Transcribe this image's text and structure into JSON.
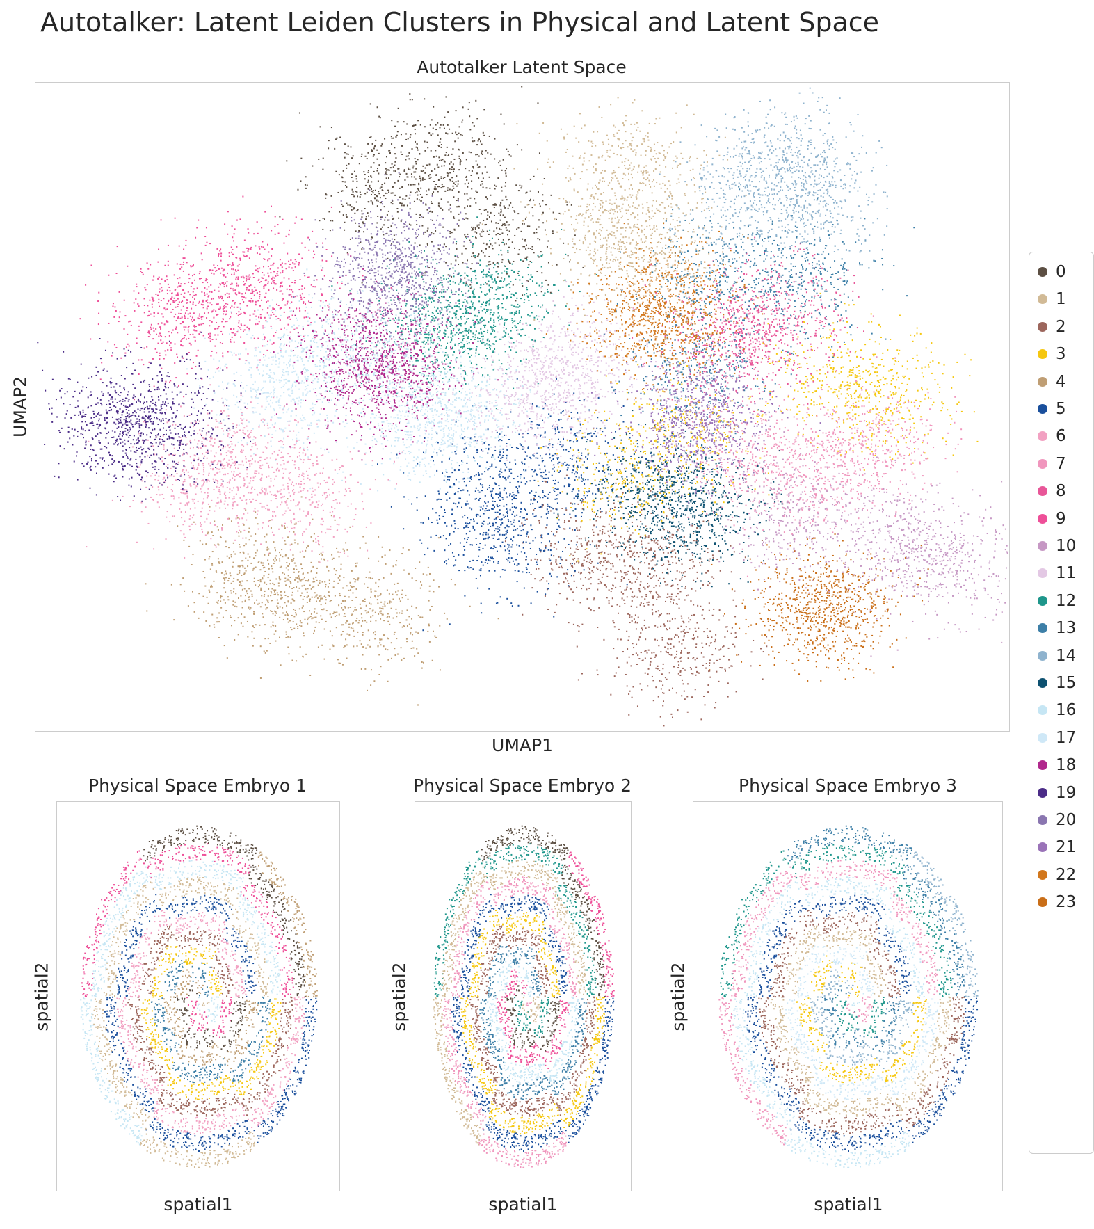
{
  "figure": {
    "title": "Autotalker: Latent Leiden Clusters in Physical and Latent Space"
  },
  "chart_data": [
    {
      "type": "scatter",
      "title": "Autotalker Latent Space",
      "xlabel": "UMAP1",
      "ylabel": "UMAP2",
      "grid": false,
      "ticks": false,
      "legend_position": "right",
      "clusters": [
        {
          "name": "0",
          "color": "#5c4f43",
          "centers": [
            [
              0.42,
              0.12
            ],
            [
              0.35,
              0.16
            ],
            [
              0.47,
              0.23
            ]
          ]
        },
        {
          "name": "1",
          "color": "#d1ba96",
          "centers": [
            [
              0.59,
              0.21
            ],
            [
              0.61,
              0.13
            ],
            [
              0.63,
              0.27
            ]
          ]
        },
        {
          "name": "2",
          "color": "#9c665c",
          "centers": [
            [
              0.63,
              0.75
            ],
            [
              0.66,
              0.88
            ],
            [
              0.57,
              0.72
            ]
          ]
        },
        {
          "name": "3",
          "color": "#f5c710",
          "centers": [
            [
              0.67,
              0.54
            ],
            [
              0.82,
              0.45
            ],
            [
              0.88,
              0.49
            ],
            [
              0.6,
              0.6
            ]
          ]
        },
        {
          "name": "4",
          "color": "#bf9e74",
          "centers": [
            [
              0.27,
              0.79
            ],
            [
              0.35,
              0.81
            ],
            [
              0.22,
              0.76
            ]
          ]
        },
        {
          "name": "5",
          "color": "#1a4f9c",
          "centers": [
            [
              0.46,
              0.63
            ],
            [
              0.48,
              0.7
            ],
            [
              0.54,
              0.58
            ]
          ]
        },
        {
          "name": "6",
          "color": "#f2a1c2",
          "centers": [
            [
              0.21,
              0.58
            ],
            [
              0.27,
              0.63
            ],
            [
              0.17,
              0.62
            ]
          ]
        },
        {
          "name": "7",
          "color": "#f096bd",
          "centers": [
            [
              0.8,
              0.6
            ],
            [
              0.86,
              0.56
            ],
            [
              0.74,
              0.57
            ]
          ]
        },
        {
          "name": "8",
          "color": "#e85698",
          "centers": [
            [
              0.71,
              0.4
            ],
            [
              0.76,
              0.36
            ]
          ]
        },
        {
          "name": "9",
          "color": "#ee4f98",
          "centers": [
            [
              0.19,
              0.33
            ],
            [
              0.14,
              0.36
            ],
            [
              0.24,
              0.3
            ]
          ]
        },
        {
          "name": "10",
          "color": "#c698c4",
          "centers": [
            [
              0.78,
              0.67
            ],
            [
              0.88,
              0.71
            ],
            [
              0.94,
              0.74
            ]
          ]
        },
        {
          "name": "11",
          "color": "#e3c8e4",
          "centers": [
            [
              0.55,
              0.43
            ],
            [
              0.51,
              0.48
            ]
          ]
        },
        {
          "name": "12",
          "color": "#1e968b",
          "centers": [
            [
              0.42,
              0.38
            ],
            [
              0.46,
              0.34
            ]
          ]
        },
        {
          "name": "13",
          "color": "#3d7fa7",
          "centers": [
            [
              0.7,
              0.3
            ],
            [
              0.79,
              0.3
            ],
            [
              0.68,
              0.44
            ]
          ]
        },
        {
          "name": "14",
          "color": "#8fb3ce",
          "centers": [
            [
              0.73,
              0.17
            ],
            [
              0.77,
              0.12
            ],
            [
              0.8,
              0.18
            ]
          ]
        },
        {
          "name": "15",
          "color": "#0d5170",
          "centers": [
            [
              0.64,
              0.63
            ],
            [
              0.68,
              0.66
            ]
          ]
        },
        {
          "name": "16",
          "color": "#c6e6f4",
          "centers": [
            [
              0.29,
              0.41
            ],
            [
              0.36,
              0.43
            ],
            [
              0.43,
              0.5
            ]
          ]
        },
        {
          "name": "17",
          "color": "#cfe8f7",
          "centers": [
            [
              0.25,
              0.47
            ],
            [
              0.4,
              0.53
            ]
          ]
        },
        {
          "name": "18",
          "color": "#b0288c",
          "centers": [
            [
              0.33,
              0.4
            ],
            [
              0.35,
              0.47
            ],
            [
              0.37,
              0.43
            ]
          ]
        },
        {
          "name": "19",
          "color": "#4b2c87",
          "centers": [
            [
              0.08,
              0.52
            ],
            [
              0.13,
              0.53
            ]
          ]
        },
        {
          "name": "20",
          "color": "#8a76b0",
          "centers": [
            [
              0.37,
              0.29
            ]
          ]
        },
        {
          "name": "21",
          "color": "#9a73b8",
          "centers": [
            [
              0.68,
              0.52
            ]
          ]
        },
        {
          "name": "22",
          "color": "#d2771c",
          "centers": [
            [
              0.63,
              0.37
            ],
            [
              0.65,
              0.34
            ]
          ]
        },
        {
          "name": "23",
          "color": "#c96e18",
          "centers": [
            [
              0.81,
              0.81
            ]
          ]
        }
      ]
    },
    {
      "type": "scatter",
      "title": "Physical Space Embryo 1",
      "xlabel": "spatial1",
      "ylabel": "spatial2",
      "grid": false,
      "ticks": false
    },
    {
      "type": "scatter",
      "title": "Physical Space Embryo 2",
      "xlabel": "spatial1",
      "ylabel": "spatial2",
      "grid": false,
      "ticks": false
    },
    {
      "type": "scatter",
      "title": "Physical Space Embryo 3",
      "xlabel": "spatial1",
      "ylabel": "spatial2",
      "grid": false,
      "ticks": false
    }
  ]
}
